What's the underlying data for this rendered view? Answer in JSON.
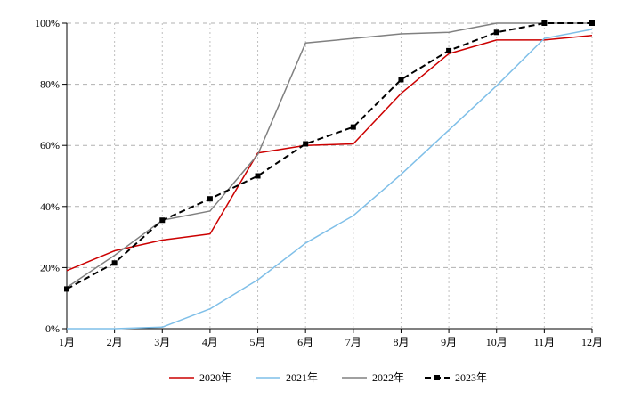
{
  "chart_data": {
    "type": "line",
    "title": "",
    "xlabel": "",
    "ylabel": "",
    "categories": [
      "1月",
      "2月",
      "3月",
      "4月",
      "5月",
      "6月",
      "7月",
      "8月",
      "9月",
      "10月",
      "11月",
      "12月"
    ],
    "ylim": [
      0,
      100
    ],
    "yticks": [
      0,
      20,
      40,
      60,
      80,
      100
    ],
    "ytick_labels": [
      "0%",
      "20%",
      "40%",
      "60%",
      "80%",
      "100%"
    ],
    "grid": true,
    "legend_position": "bottom",
    "series": [
      {
        "name": "2020年",
        "color": "#cc0000",
        "dashed": false,
        "marker": "none",
        "values": [
          19,
          25.5,
          29,
          31,
          57.5,
          60,
          60.5,
          77,
          90,
          94.5,
          94.5,
          96
        ]
      },
      {
        "name": "2021年",
        "color": "#7fbfe8",
        "dashed": false,
        "marker": "none",
        "values": [
          0,
          0,
          0.5,
          6.5,
          16,
          28,
          37,
          50.5,
          65,
          79.5,
          95,
          98
        ]
      },
      {
        "name": "2022年",
        "color": "#808080",
        "dashed": false,
        "marker": "none",
        "values": [
          13.5,
          24,
          35.5,
          38.5,
          57,
          93.5,
          95,
          96.5,
          97,
          100,
          100,
          100
        ]
      },
      {
        "name": "2023年",
        "color": "#000000",
        "dashed": true,
        "marker": "square",
        "values": [
          13,
          21.5,
          35.5,
          42.5,
          50,
          60.5,
          66,
          81.5,
          91,
          97,
          100,
          100
        ]
      }
    ]
  }
}
